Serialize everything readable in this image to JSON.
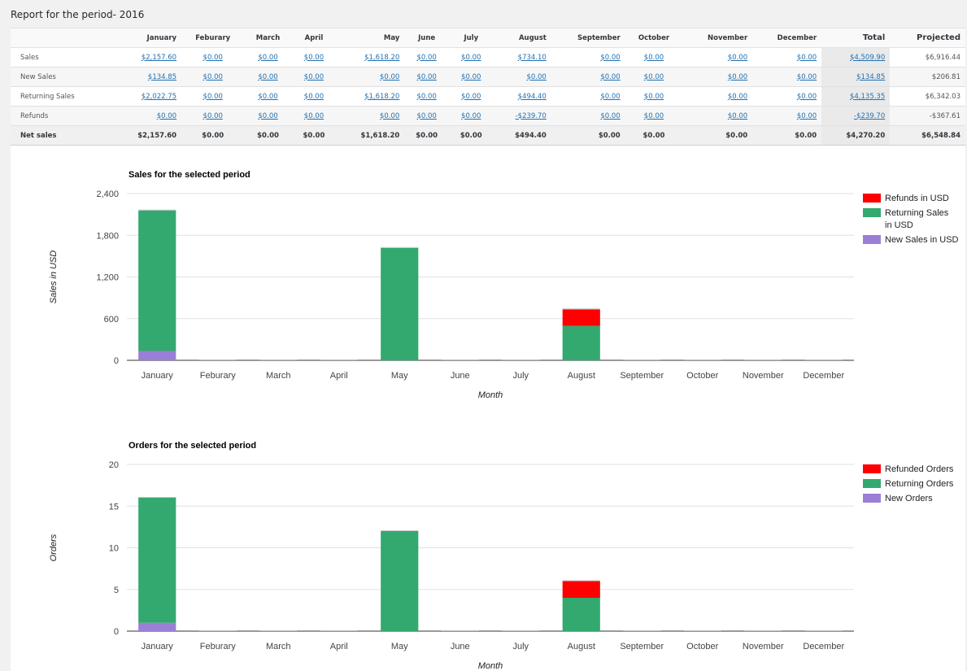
{
  "page": {
    "title": "Report for the period- 2016"
  },
  "table": {
    "months": [
      "January",
      "Feburary",
      "March",
      "April",
      "May",
      "June",
      "July",
      "August",
      "September",
      "October",
      "November",
      "December"
    ],
    "total_label": "Total",
    "projected_label": "Projected",
    "rows": [
      {
        "label": "Sales",
        "values": [
          "$2,157.60",
          "$0.00",
          "$0.00",
          "$0.00",
          "$1,618.20",
          "$0.00",
          "$0.00",
          "$734.10",
          "$0.00",
          "$0.00",
          "$0.00",
          "$0.00"
        ],
        "total": "$4,509.90",
        "projected": "$6,916.44"
      },
      {
        "label": "New Sales",
        "values": [
          "$134.85",
          "$0.00",
          "$0.00",
          "$0.00",
          "$0.00",
          "$0.00",
          "$0.00",
          "$0.00",
          "$0.00",
          "$0.00",
          "$0.00",
          "$0.00"
        ],
        "total": "$134.85",
        "projected": "$206.81"
      },
      {
        "label": "Returning Sales",
        "values": [
          "$2,022.75",
          "$0.00",
          "$0.00",
          "$0.00",
          "$1,618.20",
          "$0.00",
          "$0.00",
          "$494.40",
          "$0.00",
          "$0.00",
          "$0.00",
          "$0.00"
        ],
        "total": "$4,135.35",
        "projected": "$6,342.03"
      },
      {
        "label": "Refunds",
        "values": [
          "$0.00",
          "$0.00",
          "$0.00",
          "$0.00",
          "$0.00",
          "$0.00",
          "$0.00",
          "-$239.70",
          "$0.00",
          "$0.00",
          "$0.00",
          "$0.00"
        ],
        "total": "-$239.70",
        "projected": "-$367.61"
      }
    ],
    "net": {
      "label": "Net sales",
      "values": [
        "$2,157.60",
        "$0.00",
        "$0.00",
        "$0.00",
        "$1,618.20",
        "$0.00",
        "$0.00",
        "$494.40",
        "$0.00",
        "$0.00",
        "$0.00",
        "$0.00"
      ],
      "total": "$4,270.20",
      "projected": "$6,548.84"
    }
  },
  "colors": {
    "refund": "#ff0000",
    "returning": "#33a96f",
    "new": "#9b7fd6"
  },
  "chart_data": [
    {
      "type": "bar",
      "stacked": true,
      "title": "Sales for the selected period",
      "xlabel": "Month",
      "ylabel": "Sales in USD",
      "ylim": [
        0,
        2400
      ],
      "yticks": [
        0,
        600,
        1200,
        1800,
        2400
      ],
      "ytick_labels": [
        "0",
        "600",
        "1,200",
        "1,800",
        "2,400"
      ],
      "grid": true,
      "legend_position": "right",
      "categories": [
        "January",
        "Feburary",
        "March",
        "April",
        "May",
        "June",
        "July",
        "August",
        "September",
        "October",
        "November",
        "December"
      ],
      "series": [
        {
          "name": "New Sales in USD",
          "color": "#9b7fd6",
          "values": [
            134.85,
            0,
            0,
            0,
            0,
            0,
            0,
            0,
            0,
            0,
            0,
            0
          ]
        },
        {
          "name": "Returning Sales in USD",
          "color": "#33a96f",
          "values": [
            2022.75,
            0,
            0,
            0,
            1618.2,
            0,
            0,
            494.4,
            0,
            0,
            0,
            0
          ]
        },
        {
          "name": "Refunds in USD",
          "color": "#ff0000",
          "values": [
            0,
            0,
            0,
            0,
            0,
            0,
            0,
            239.7,
            0,
            0,
            0,
            0
          ]
        }
      ],
      "legend_order": [
        "Refunds in USD",
        "Returning Sales in USD",
        "New Sales in USD"
      ]
    },
    {
      "type": "bar",
      "stacked": true,
      "title": "Orders for the selected period",
      "xlabel": "Month",
      "ylabel": "Orders",
      "ylim": [
        0,
        20
      ],
      "yticks": [
        0,
        5,
        10,
        15,
        20
      ],
      "ytick_labels": [
        "0",
        "5",
        "10",
        "15",
        "20"
      ],
      "grid": true,
      "legend_position": "right",
      "categories": [
        "January",
        "Feburary",
        "March",
        "April",
        "May",
        "June",
        "July",
        "August",
        "September",
        "October",
        "November",
        "December"
      ],
      "series": [
        {
          "name": "New Orders",
          "color": "#9b7fd6",
          "values": [
            1,
            0,
            0,
            0,
            0,
            0,
            0,
            0,
            0,
            0,
            0,
            0
          ]
        },
        {
          "name": "Returning Orders",
          "color": "#33a96f",
          "values": [
            15,
            0,
            0,
            0,
            12,
            0,
            0,
            4,
            0,
            0,
            0,
            0
          ]
        },
        {
          "name": "Refunded Orders",
          "color": "#ff0000",
          "values": [
            0,
            0,
            0,
            0,
            0,
            0,
            0,
            2,
            0,
            0,
            0,
            0
          ]
        }
      ],
      "legend_order": [
        "Refunded Orders",
        "Returning Orders",
        "New Orders"
      ]
    }
  ]
}
